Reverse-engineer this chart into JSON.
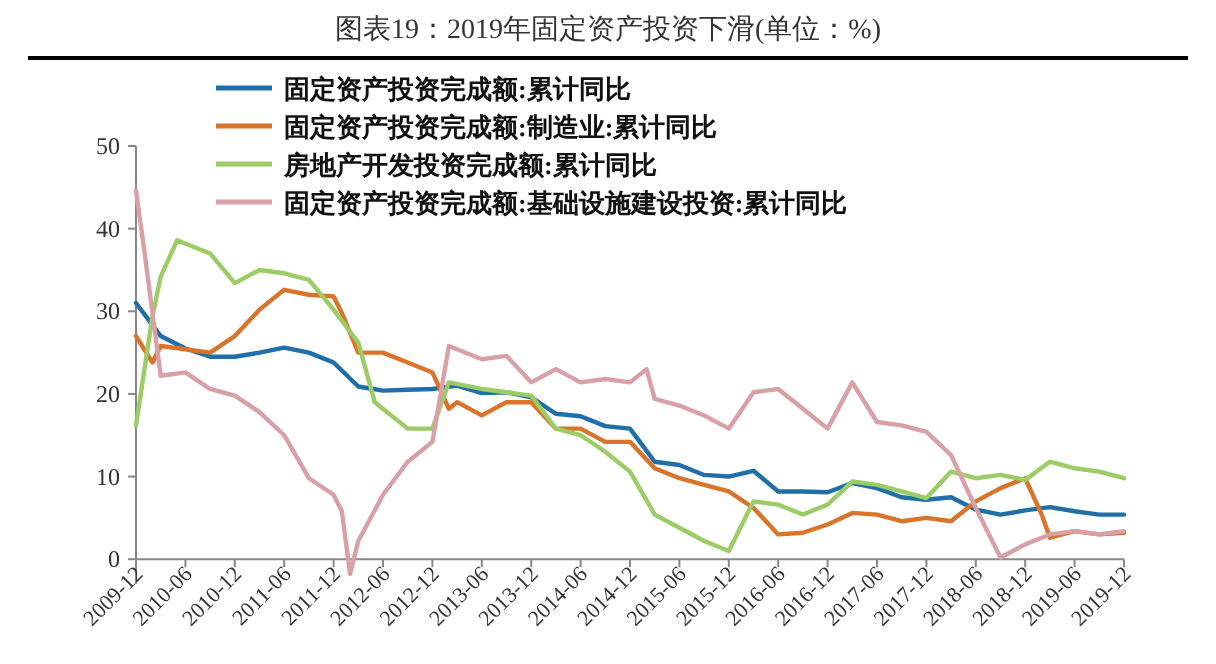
{
  "chart_data": {
    "type": "line",
    "title": "图表19：2019年固定资产投资下滑(单位：%)",
    "xlim": [
      "2009-12",
      "2019-12"
    ],
    "ylim": [
      -3,
      50
    ],
    "yticks": [
      0,
      10,
      20,
      30,
      40,
      50
    ],
    "xticks": [
      "2009-12",
      "2010-06",
      "2010-12",
      "2011-06",
      "2011-12",
      "2012-06",
      "2012-12",
      "2013-06",
      "2013-12",
      "2014-06",
      "2014-12",
      "2015-06",
      "2015-12",
      "2016-06",
      "2016-12",
      "2017-06",
      "2017-12",
      "2018-06",
      "2018-12",
      "2019-06",
      "2019-12"
    ],
    "grid": false,
    "legend": "top left",
    "marker": "none",
    "line_style": "solid",
    "series": [
      {
        "name": "固定资产投资完成额:累计同比",
        "color": "#1f6fa8",
        "x": [
          "2009-12",
          "2010-03",
          "2010-06",
          "2010-09",
          "2010-12",
          "2011-03",
          "2011-06",
          "2011-09",
          "2011-12",
          "2012-03",
          "2012-06",
          "2012-09",
          "2012-12",
          "2013-03",
          "2013-06",
          "2013-09",
          "2013-12",
          "2014-03",
          "2014-06",
          "2014-09",
          "2014-12",
          "2015-03",
          "2015-06",
          "2015-09",
          "2015-12",
          "2016-03",
          "2016-06",
          "2016-09",
          "2016-12",
          "2017-03",
          "2017-06",
          "2017-09",
          "2017-12",
          "2018-03",
          "2018-06",
          "2018-09",
          "2018-12",
          "2019-03",
          "2019-06",
          "2019-09",
          "2019-12"
        ],
        "values": [
          31,
          27,
          25.5,
          24.5,
          24.5,
          25,
          25.6,
          25,
          23.8,
          20.9,
          20.4,
          20.5,
          20.6,
          21,
          20.1,
          20.2,
          19.6,
          17.6,
          17.3,
          16.1,
          15.8,
          11.8,
          11.4,
          10.2,
          10,
          10.7,
          8.2,
          8.2,
          8.1,
          9.2,
          8.6,
          7.5,
          7.2,
          7.5,
          6,
          5.4,
          5.9,
          6.3,
          5.8,
          5.4,
          5.4
        ]
      },
      {
        "name": "固定资产投资完成额:制造业:累计同比",
        "color": "#d9742a",
        "x": [
          "2009-12",
          "2010-02",
          "2010-03",
          "2010-06",
          "2010-09",
          "2010-12",
          "2011-03",
          "2011-06",
          "2011-09",
          "2011-12",
          "2012-01",
          "2012-03",
          "2012-06",
          "2012-09",
          "2012-12",
          "2013-02",
          "2013-03",
          "2013-06",
          "2013-09",
          "2013-12",
          "2014-03",
          "2014-06",
          "2014-09",
          "2014-12",
          "2015-03",
          "2015-06",
          "2015-09",
          "2015-12",
          "2016-03",
          "2016-06",
          "2016-09",
          "2016-12",
          "2017-03",
          "2017-06",
          "2017-09",
          "2017-12",
          "2018-03",
          "2018-06",
          "2018-09",
          "2018-12",
          "2019-02",
          "2019-03",
          "2019-06",
          "2019-09",
          "2019-12"
        ],
        "values": [
          27,
          23.8,
          25.8,
          25.4,
          25,
          27,
          30.2,
          32.6,
          32,
          31.8,
          29.8,
          25,
          25,
          23.8,
          22.6,
          18.2,
          19,
          17.4,
          19,
          19,
          15.8,
          15.8,
          14.2,
          14.2,
          11,
          9.8,
          9,
          8.2,
          6.2,
          3,
          3.2,
          4.2,
          5.6,
          5.4,
          4.6,
          5,
          4.6,
          7,
          8.6,
          9.8,
          5.4,
          2.6,
          3.4,
          3,
          3.2
        ]
      },
      {
        "name": "房地产开发投资完成额:累计同比",
        "color": "#9ccc65",
        "x": [
          "2009-12",
          "2010-02",
          "2010-03",
          "2010-05",
          "2010-09",
          "2010-12",
          "2011-03",
          "2011-06",
          "2011-09",
          "2011-12",
          "2012-03",
          "2012-05",
          "2012-09",
          "2012-12",
          "2013-02",
          "2013-06",
          "2013-09",
          "2013-12",
          "2014-03",
          "2014-06",
          "2014-09",
          "2014-12",
          "2015-03",
          "2015-06",
          "2015-09",
          "2015-12",
          "2016-03",
          "2016-06",
          "2016-09",
          "2016-12",
          "2017-03",
          "2017-06",
          "2017-09",
          "2017-12",
          "2018-03",
          "2018-06",
          "2018-09",
          "2018-12",
          "2019-03",
          "2019-06",
          "2019-09",
          "2019-12"
        ],
        "values": [
          16.2,
          29.4,
          34.2,
          38.6,
          37,
          33.4,
          35,
          34.6,
          33.8,
          30.2,
          26.2,
          19,
          15.8,
          15.8,
          21.4,
          20.6,
          20.2,
          19.8,
          15.8,
          15,
          13,
          10.6,
          5.4,
          3.8,
          2.2,
          1,
          7,
          6.6,
          5.4,
          6.6,
          9.4,
          9,
          8.2,
          7.4,
          10.6,
          9.8,
          10.2,
          9.6,
          11.8,
          11,
          10.6,
          9.8
        ]
      },
      {
        "name": "固定资产投资完成额:基础设施建设投资:累计同比",
        "color": "#d9a0a8",
        "x": [
          "2009-12",
          "2010-01",
          "2010-03",
          "2010-06",
          "2010-09",
          "2010-12",
          "2011-03",
          "2011-06",
          "2011-09",
          "2011-12",
          "2012-01",
          "2012-02",
          "2012-03",
          "2012-06",
          "2012-09",
          "2012-12",
          "2013-02",
          "2013-06",
          "2013-09",
          "2013-12",
          "2014-03",
          "2014-06",
          "2014-09",
          "2014-12",
          "2015-02",
          "2015-03",
          "2015-06",
          "2015-09",
          "2015-12",
          "2016-03",
          "2016-06",
          "2016-09",
          "2016-12",
          "2017-03",
          "2017-06",
          "2017-09",
          "2017-12",
          "2018-03",
          "2018-06",
          "2018-09",
          "2018-12",
          "2019-03",
          "2019-06",
          "2019-09",
          "2019-12"
        ],
        "values": [
          44.6,
          37.4,
          22.2,
          22.6,
          20.6,
          19.8,
          17.8,
          15,
          9.8,
          7.8,
          5.8,
          -1.8,
          2.2,
          7.8,
          11.8,
          14.2,
          25.8,
          24.2,
          24.6,
          21.4,
          23,
          21.4,
          21.8,
          21.4,
          23,
          19.4,
          18.6,
          17.4,
          15.8,
          20.2,
          20.6,
          18.2,
          15.8,
          21.4,
          16.6,
          16.2,
          15.4,
          12.6,
          6.2,
          0.2,
          1.8,
          3,
          3.4,
          3,
          3.4
        ]
      }
    ]
  }
}
